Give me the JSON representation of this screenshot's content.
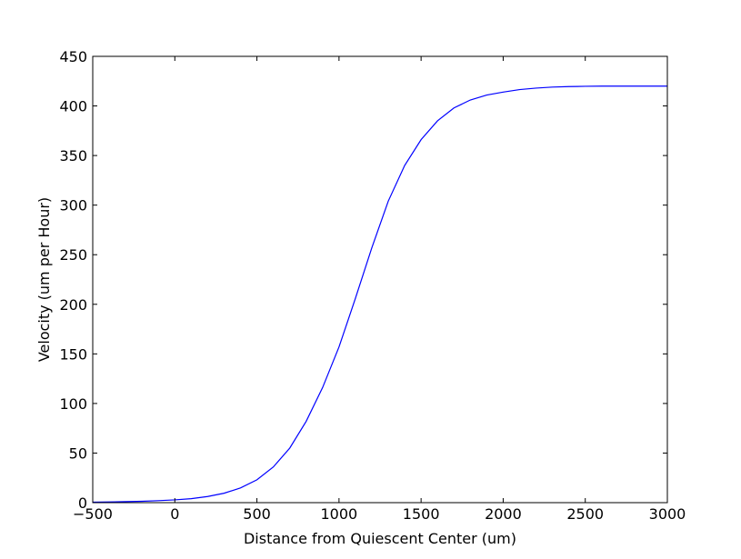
{
  "chart_data": {
    "type": "line",
    "title": "",
    "xlabel": "Distance from Quiescent Center (um)",
    "ylabel": "Velocity (um per Hour)",
    "xlim": [
      -500,
      3000
    ],
    "ylim": [
      0,
      450
    ],
    "xticks": [
      -500,
      0,
      500,
      1000,
      1500,
      2000,
      2500,
      3000
    ],
    "xtick_labels": [
      "−500",
      "0",
      "500",
      "1000",
      "1500",
      "2000",
      "2500",
      "3000"
    ],
    "yticks": [
      0,
      50,
      100,
      150,
      200,
      250,
      300,
      350,
      400,
      450
    ],
    "ytick_labels": [
      "0",
      "50",
      "100",
      "150",
      "200",
      "250",
      "300",
      "350",
      "400",
      "450"
    ],
    "grid": false,
    "legend": "none",
    "series": [
      {
        "color": "#0000ff",
        "x": [
          -500,
          -400,
          -300,
          -200,
          -100,
          0,
          100,
          200,
          300,
          400,
          500,
          600,
          700,
          800,
          900,
          1000,
          1100,
          1200,
          1300,
          1400,
          1500,
          1600,
          1700,
          1800,
          1900,
          2000,
          2100,
          2200,
          2300,
          2400,
          2500,
          2600,
          2700,
          2800,
          2900,
          3000
        ],
        "y": [
          0.5,
          0.7,
          1.0,
          1.4,
          2.0,
          2.8,
          4.0,
          6.2,
          9.5,
          14.8,
          23,
          36,
          55,
          82,
          116,
          157,
          206,
          257,
          304,
          340,
          366,
          385,
          398,
          406,
          411,
          414,
          416.5,
          418,
          419,
          419.5,
          419.8,
          420,
          420,
          420,
          420,
          420
        ]
      }
    ]
  }
}
